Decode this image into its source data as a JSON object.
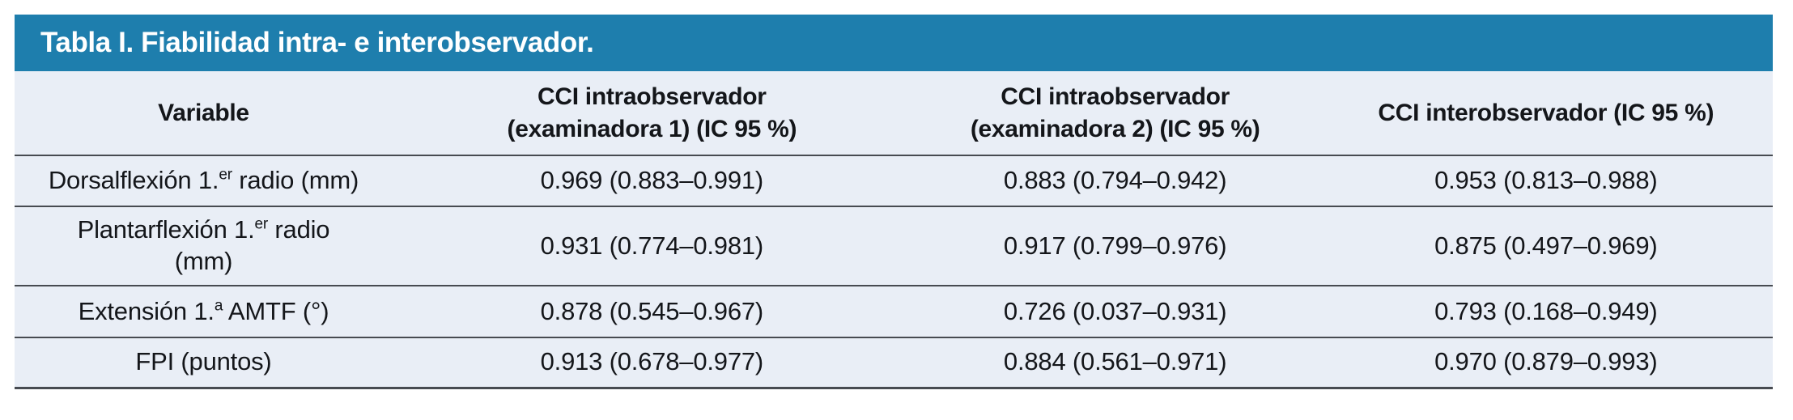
{
  "table": {
    "title": "Tabla I. Fiabilidad intra- e interobservador.",
    "theme": {
      "header_bg": "#1e7ead",
      "header_text": "#ffffff",
      "body_bg": "#e9eef6",
      "rule_color": "#474b51",
      "text_color": "#14161a"
    },
    "columns": [
      {
        "line1": "Variable",
        "line2": ""
      },
      {
        "line1": "CCI intraobservador",
        "line2": "(examinadora 1) (IC 95 %)"
      },
      {
        "line1": "CCI intraobservador",
        "line2": "(examinadora 2) (IC 95 %)"
      },
      {
        "line1": "CCI interobservador (IC 95 %)",
        "line2": ""
      }
    ],
    "rows": [
      {
        "variable": {
          "pre": "Dorsalflexión 1.",
          "sup": "er",
          "post": " radio (mm)",
          "line2": ""
        },
        "cci_intra_1": "0.969 (0.883–0.991)",
        "cci_intra_2": "0.883 (0.794–0.942)",
        "cci_inter": "0.953 (0.813–0.988)"
      },
      {
        "variable": {
          "pre": "Plantarflexión 1.",
          "sup": "er",
          "post": " radio",
          "line2": "(mm)"
        },
        "cci_intra_1": "0.931 (0.774–0.981)",
        "cci_intra_2": "0.917 (0.799–0.976)",
        "cci_inter": "0.875 (0.497–0.969)"
      },
      {
        "variable": {
          "pre": "Extensión 1.",
          "sup": "a",
          "post": " AMTF (°)",
          "line2": ""
        },
        "cci_intra_1": "0.878 (0.545–0.967)",
        "cci_intra_2": "0.726 (0.037–0.931)",
        "cci_inter": "0.793 (0.168–0.949)"
      },
      {
        "variable": {
          "pre": "FPI (puntos)",
          "sup": "",
          "post": "",
          "line2": ""
        },
        "cci_intra_1": "0.913 (0.678–0.977)",
        "cci_intra_2": "0.884 (0.561–0.971)",
        "cci_inter": "0.970 (0.879–0.993)"
      }
    ]
  }
}
